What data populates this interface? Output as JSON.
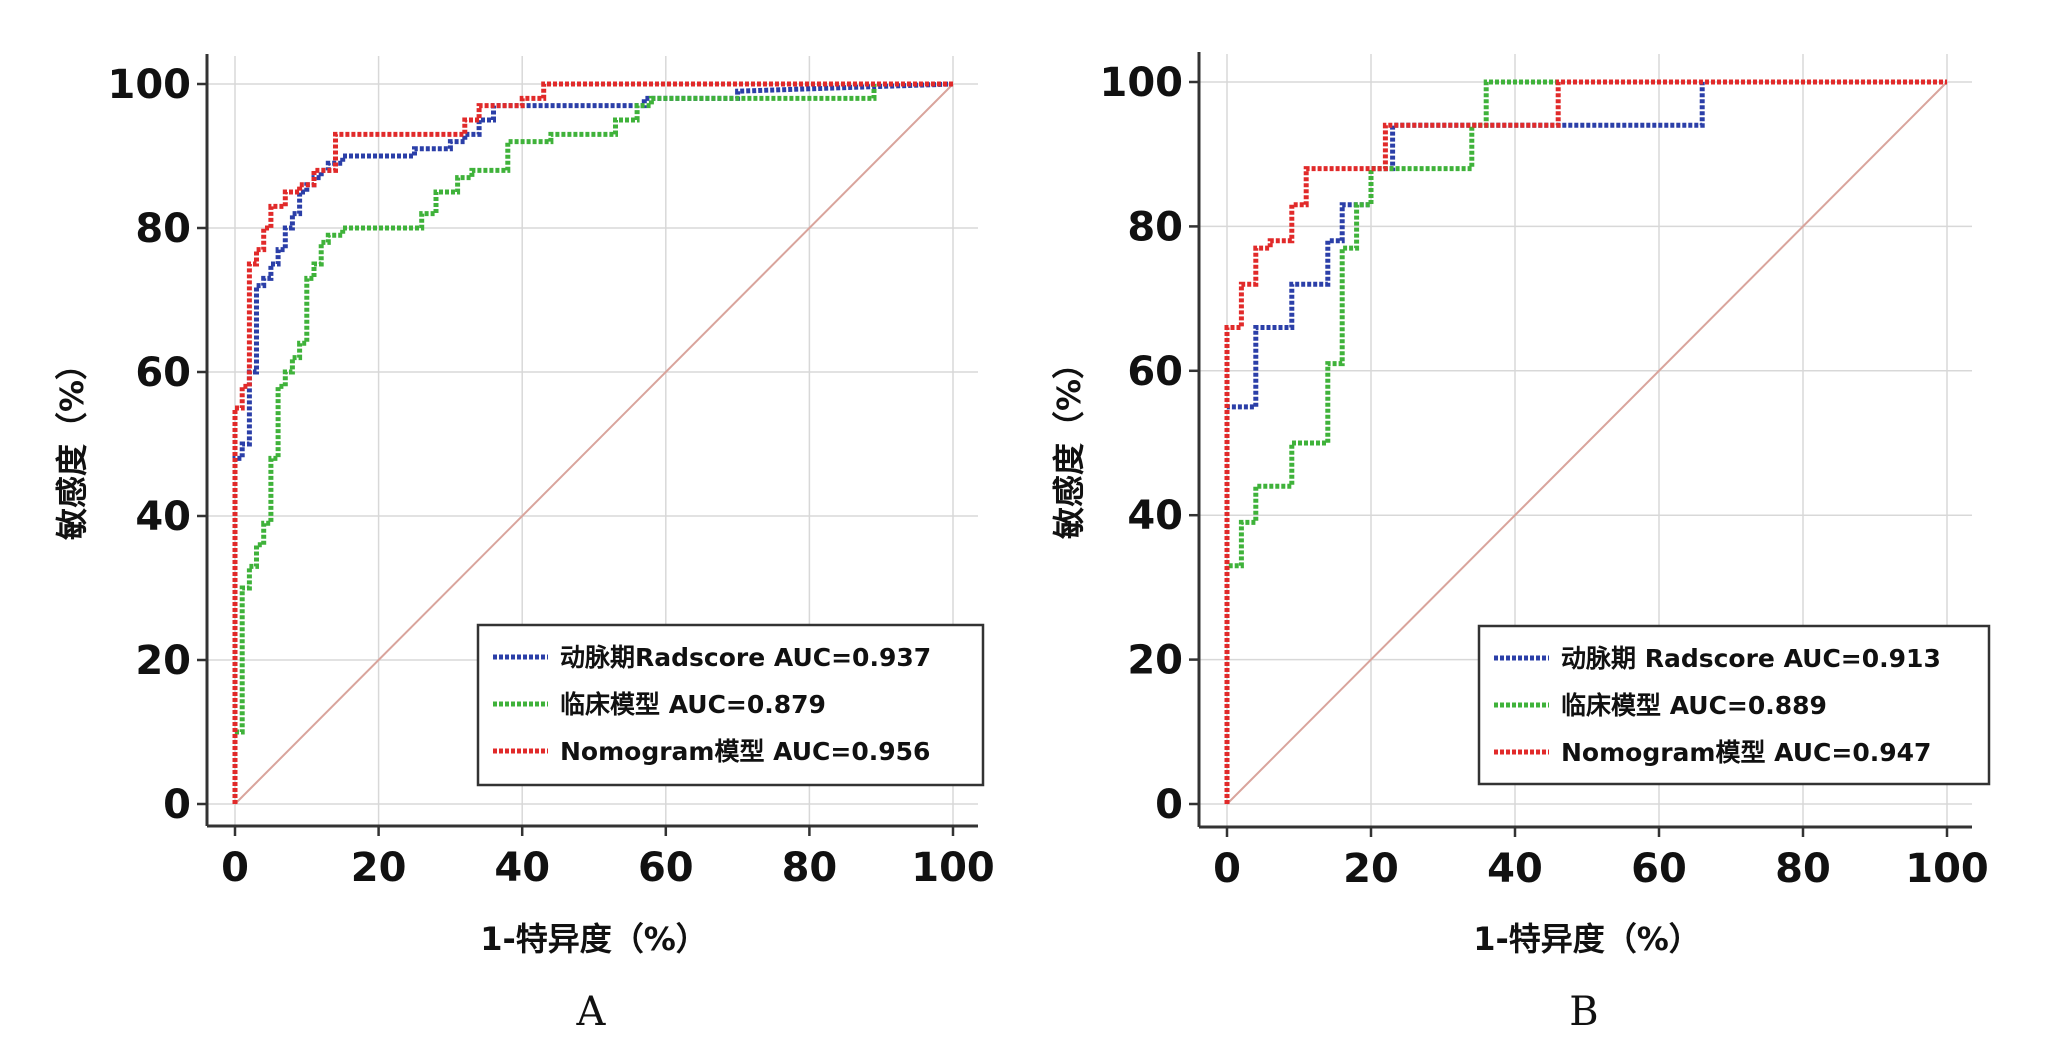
{
  "chart_data": [
    {
      "type": "line",
      "panel_label": "A",
      "xlabel": "1-特异度（%）",
      "ylabel": "敏感度（%）",
      "xlim": [
        0,
        100
      ],
      "ylim": [
        0,
        100
      ],
      "xticks": [
        "0",
        "20",
        "40",
        "60",
        "80",
        "100"
      ],
      "yticks": [
        "0",
        "20",
        "40",
        "60",
        "80",
        "100"
      ],
      "grid": true,
      "legend_position": "bottom-right",
      "reference_line": {
        "x": [
          0,
          100
        ],
        "y": [
          0,
          100
        ],
        "color": "#d9a49c"
      },
      "series": [
        {
          "name": "动脉期Radscore AUC=0.937",
          "color": "#2b3fa8",
          "x": [
            0,
            0,
            1,
            1,
            2,
            2,
            3,
            3,
            4,
            4,
            5,
            5,
            6,
            6,
            7,
            7,
            8,
            8,
            9,
            9,
            10,
            10,
            11,
            11,
            12,
            12,
            13,
            13,
            15,
            15,
            25,
            25,
            30,
            30,
            32,
            32,
            34,
            34,
            36,
            36,
            57,
            57,
            70,
            70,
            100
          ],
          "y": [
            0,
            48,
            48,
            50,
            50,
            60,
            60,
            72,
            72,
            73,
            73,
            75,
            75,
            77,
            77,
            80,
            80,
            82,
            82,
            85,
            85,
            86,
            86,
            87,
            87,
            88,
            88,
            89,
            89,
            90,
            90,
            91,
            91,
            92,
            92,
            93,
            93,
            95,
            95,
            97,
            97,
            98,
            98,
            99,
            100
          ]
        },
        {
          "name": "临床模型 AUC=0.879",
          "color": "#3fb23a",
          "x": [
            0,
            0,
            1,
            1,
            2,
            2,
            3,
            3,
            4,
            4,
            5,
            5,
            6,
            6,
            7,
            7,
            8,
            8,
            9,
            9,
            10,
            10,
            11,
            11,
            12,
            12,
            13,
            13,
            15,
            15,
            20,
            20,
            26,
            26,
            28,
            28,
            31,
            31,
            33,
            33,
            38,
            38,
            44,
            44,
            53,
            53,
            56,
            56,
            58,
            58,
            89,
            89,
            100
          ],
          "y": [
            0,
            10,
            10,
            30,
            30,
            33,
            33,
            36,
            36,
            39,
            39,
            48,
            48,
            58,
            58,
            60,
            60,
            62,
            62,
            64,
            64,
            73,
            73,
            75,
            75,
            78,
            78,
            79,
            79,
            80,
            80,
            80,
            80,
            82,
            82,
            85,
            85,
            87,
            87,
            88,
            88,
            92,
            92,
            93,
            93,
            95,
            95,
            97,
            97,
            98,
            98,
            100,
            100
          ]
        },
        {
          "name": "Nomogram模型 AUC=0.956",
          "color": "#e12a2a",
          "x": [
            0,
            0,
            1,
            1,
            2,
            2,
            3,
            3,
            4,
            4,
            5,
            5,
            7,
            7,
            9,
            9,
            11,
            11,
            14,
            14,
            20,
            20,
            28,
            28,
            32,
            32,
            34,
            34,
            40,
            40,
            43,
            43,
            100
          ],
          "y": [
            0,
            55,
            55,
            58,
            58,
            75,
            75,
            77,
            77,
            80,
            80,
            83,
            83,
            85,
            85,
            86,
            86,
            88,
            88,
            93,
            93,
            93,
            93,
            93,
            93,
            95,
            95,
            97,
            97,
            98,
            98,
            100,
            100
          ]
        }
      ]
    },
    {
      "type": "line",
      "panel_label": "B",
      "xlabel": "1-特异度（%）",
      "ylabel": "敏感度（%）",
      "xlim": [
        0,
        100
      ],
      "ylim": [
        0,
        100
      ],
      "xticks": [
        "0",
        "20",
        "40",
        "60",
        "80",
        "100"
      ],
      "yticks": [
        "0",
        "20",
        "40",
        "60",
        "80",
        "100"
      ],
      "grid": true,
      "legend_position": "bottom-right",
      "reference_line": {
        "x": [
          0,
          100
        ],
        "y": [
          0,
          100
        ],
        "color": "#d9a49c"
      },
      "series": [
        {
          "name": "动脉期 Radscore AUC=0.913",
          "color": "#2b3fa8",
          "x": [
            0,
            0,
            4,
            4,
            9,
            9,
            11,
            11,
            14,
            14,
            16,
            16,
            18,
            18,
            20,
            20,
            23,
            23,
            37,
            37,
            46,
            46,
            66,
            66,
            100
          ],
          "y": [
            0,
            55,
            55,
            66,
            66,
            72,
            72,
            72,
            72,
            78,
            78,
            83,
            83,
            83,
            83,
            88,
            88,
            94,
            94,
            94,
            94,
            94,
            94,
            100,
            100
          ]
        },
        {
          "name": "临床模型 AUC=0.889",
          "color": "#3fb23a",
          "x": [
            0,
            0,
            2,
            2,
            4,
            4,
            6,
            6,
            9,
            9,
            11,
            11,
            14,
            14,
            16,
            16,
            18,
            18,
            20,
            20,
            34,
            34,
            36,
            36,
            46,
            46,
            100
          ],
          "y": [
            0,
            33,
            33,
            39,
            39,
            44,
            44,
            44,
            44,
            50,
            50,
            50,
            50,
            61,
            61,
            77,
            77,
            83,
            83,
            88,
            88,
            94,
            94,
            100,
            100,
            100,
            100
          ]
        },
        {
          "name": "Nomogram模型 AUC=0.947",
          "color": "#e12a2a",
          "x": [
            0,
            0,
            2,
            2,
            4,
            4,
            6,
            6,
            9,
            9,
            11,
            11,
            14,
            14,
            20,
            20,
            22,
            22,
            46,
            46,
            100
          ],
          "y": [
            0,
            66,
            66,
            72,
            72,
            77,
            77,
            78,
            78,
            83,
            83,
            88,
            88,
            88,
            88,
            88,
            88,
            94,
            94,
            100,
            100
          ]
        }
      ]
    }
  ]
}
